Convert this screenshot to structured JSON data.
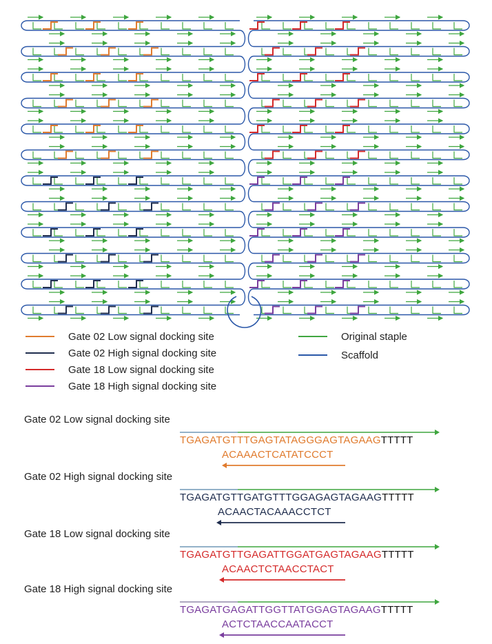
{
  "colors": {
    "gate02_low": "#e07b2e",
    "gate02_high": "#1f2d4e",
    "gate18_low": "#d42a2a",
    "gate18_high": "#7a3e9e",
    "staple": "#3fa63f",
    "scaffold": "#2a57a8",
    "tail": "#111111"
  },
  "legend": [
    {
      "label": "Gate 02 Low signal docking site",
      "color_key": "gate02_low"
    },
    {
      "label": "Gate 02 High signal docking site",
      "color_key": "gate02_high"
    },
    {
      "label": "Gate 18 Low signal docking site",
      "color_key": "gate18_low"
    },
    {
      "label": "Gate 18 High signal docking site",
      "color_key": "gate18_high"
    },
    {
      "label": "Original staple",
      "color_key": "staple"
    },
    {
      "label": "Scaffold",
      "color_key": "scaffold"
    }
  ],
  "sequences": [
    {
      "title": "Gate 02 Low signal docking site",
      "color_key": "gate02_low",
      "top_strand": "TGAGATGTTTGAGTATAGGGAGTAGAAG",
      "tail": "TTTTT",
      "bottom_strand": "ACAAACTCATATCCCT"
    },
    {
      "title": "Gate 02 High signal docking site",
      "color_key": "gate02_high",
      "top_strand": "TGAGATGTTGATGTTTGGAGAGTAGAAG",
      "tail": "TTTTT",
      "bottom_strand": "ACAACTACAAACCTCT"
    },
    {
      "title": "Gate 18 Low signal docking site",
      "color_key": "gate18_low",
      "top_strand": "TGAGATGTTGAGATTGGATGAGTAGAAG",
      "tail": "TTTTT",
      "bottom_strand": "ACAACTCTAACCTACT"
    },
    {
      "title": "Gate 18 High signal docking site",
      "color_key": "gate18_high",
      "top_strand": "TGAGATGAGATTGGTTATGGAGTAGAAG",
      "tail": "TTTTT",
      "bottom_strand": "ACTCTAACCAATACCT"
    }
  ]
}
